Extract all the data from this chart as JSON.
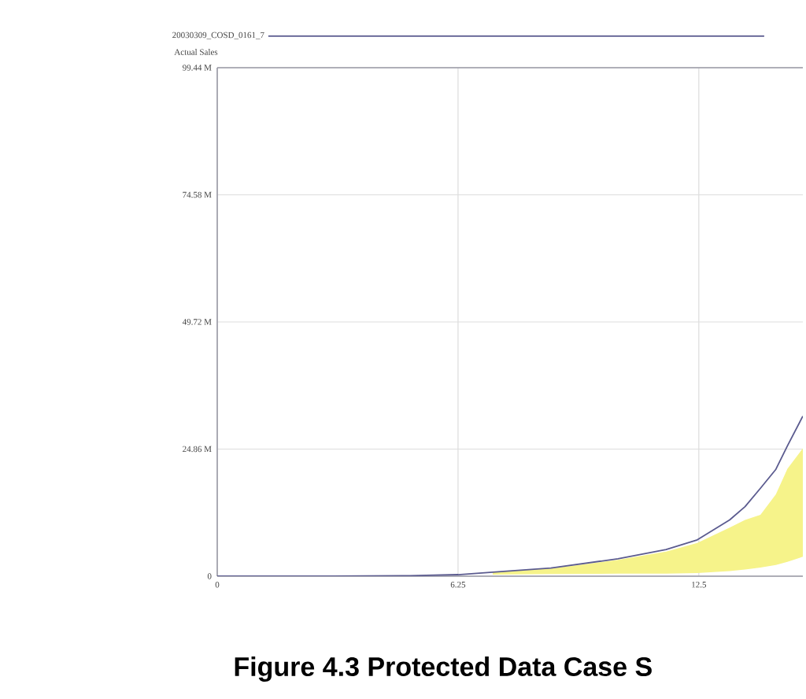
{
  "chart_data": {
    "type": "line",
    "ylabel": "Actual Sales",
    "legend": "top",
    "grid": true,
    "annotations": [
      "Figure 4.3 Protected Data Case S"
    ],
    "xlim": [
      0,
      15.2
    ],
    "xticks": [
      0,
      6.25,
      12.5
    ],
    "ylim": [
      0,
      99.44
    ],
    "yticks": [
      0,
      {
        "value": 24.86,
        "label": "24.86 M"
      },
      {
        "value": 49.72,
        "label": "49.72 M"
      },
      {
        "value": 74.58,
        "label": "74.58 M"
      },
      {
        "value": 99.44,
        "label": "99.44 M"
      }
    ],
    "series": [
      {
        "name": "20030309_COSD_0161_7",
        "color": "#5b5b8f",
        "x": [
          0,
          3,
          5,
          6.25,
          7.15,
          8.66,
          10.4,
          11.65,
          12.46,
          13.3,
          13.7,
          14.1,
          14.5,
          14.8,
          15.2
        ],
        "values": [
          0,
          0,
          0.1,
          0.3,
          0.8,
          1.6,
          3.4,
          5.2,
          7.1,
          11,
          13.6,
          17.2,
          20.9,
          25.5,
          31.3
        ],
        "lower": [
          null,
          null,
          null,
          null,
          0.3,
          0.4,
          0.5,
          0.5,
          0.6,
          1,
          1.3,
          1.7,
          2.2,
          2.8,
          3.8
        ],
        "upper": [
          null,
          null,
          null,
          null,
          0.8,
          1.5,
          3.2,
          4.8,
          6.5,
          9.5,
          11,
          12,
          16,
          21,
          25
        ]
      }
    ]
  }
}
